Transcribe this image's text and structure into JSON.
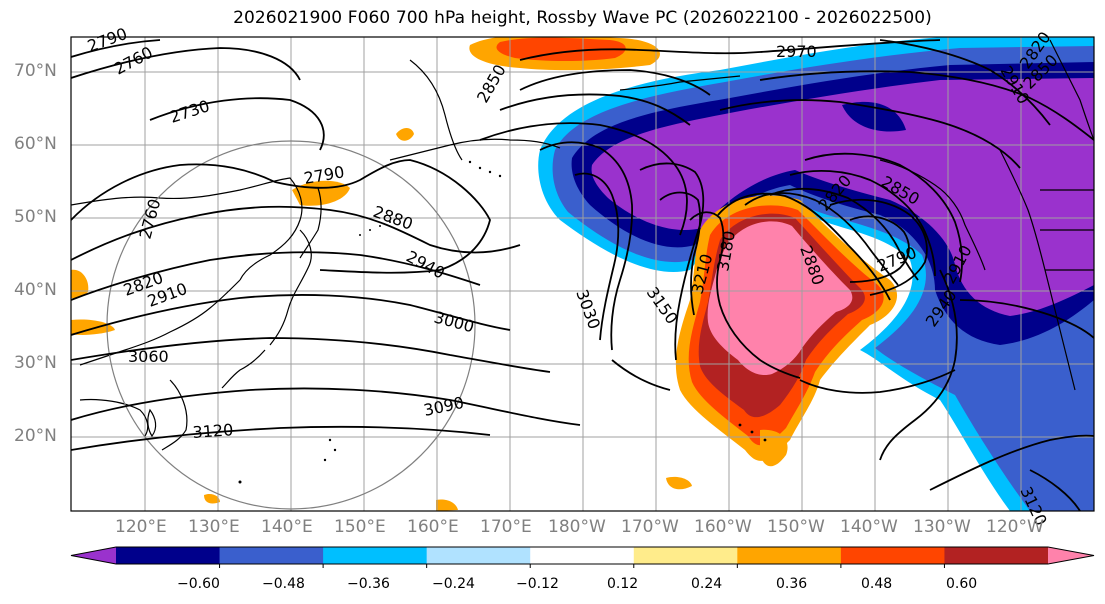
{
  "title": "2026021900 F060 700 hPa height, Rossby Wave PC (2026022100 - 2026022500)",
  "axes": {
    "lat_labels": [
      "70°N",
      "60°N",
      "50°N",
      "40°N",
      "30°N",
      "20°N"
    ],
    "lon_labels": [
      "120°E",
      "130°E",
      "140°E",
      "150°E",
      "160°E",
      "170°E",
      "180°W",
      "170°W",
      "160°W",
      "150°W",
      "140°W",
      "130°W",
      "120°W"
    ]
  },
  "contour_labels": [
    "2790",
    "2760",
    "2730",
    "2790",
    "2760",
    "2820",
    "2910",
    "3060",
    "3120",
    "2850",
    "2880",
    "2940",
    "3000",
    "3090",
    "3030",
    "3150",
    "3210",
    "3180",
    "2880",
    "2820",
    "2850",
    "2790",
    "2910",
    "2940",
    "2970",
    "2910",
    "2820",
    "2850",
    "3120"
  ],
  "colorbar": {
    "ticks": [
      "−0.60",
      "−0.48",
      "−0.36",
      "−0.24",
      "−0.12",
      "0.12",
      "0.24",
      "0.36",
      "0.48",
      "0.60"
    ],
    "colors": [
      "#9a32cd",
      "#00008b",
      "#3a5fcd",
      "#00bfff",
      "#b0e2ff",
      "#ffffff",
      "#ffec8b",
      "#ffa500",
      "#ff4500",
      "#b22222",
      "#ff82ab"
    ]
  }
}
